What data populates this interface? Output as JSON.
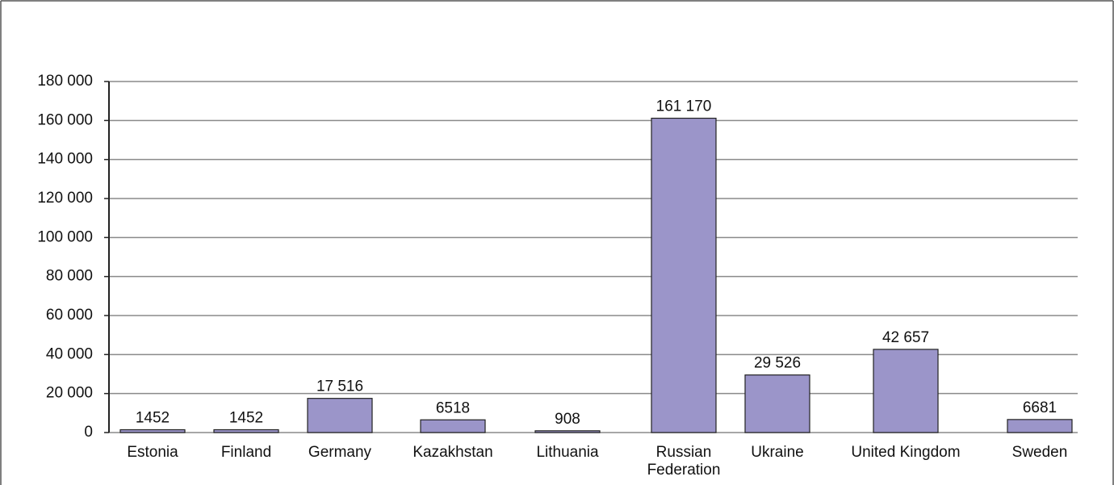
{
  "chart_data": {
    "type": "bar",
    "categories": [
      "Estonia",
      "Finland",
      "Germany",
      "Kazakhstan",
      "Lithuania",
      "Russian Federation",
      "Ukraine",
      "United Kingdom",
      "Sweden"
    ],
    "values": [
      1452,
      1452,
      17516,
      6518,
      908,
      161170,
      29526,
      42657,
      6681
    ],
    "value_labels": [
      "1452",
      "1452",
      "17 516",
      "6518",
      "908",
      "161 170",
      "29 526",
      "42 657",
      "6681"
    ],
    "color": "#9b95c9",
    "ylim": [
      0,
      180000
    ],
    "yticks": [
      0,
      {
        "value": 20000,
        "label": "20 000"
      },
      {
        "value": 40000,
        "label": "40 000"
      },
      {
        "value": 60000,
        "label": "60 000"
      },
      {
        "value": 80000,
        "label": "80 000"
      },
      {
        "value": 100000,
        "label": "100 000"
      },
      {
        "value": 120000,
        "label": "120 000"
      },
      {
        "value": 140000,
        "label": "140 000"
      },
      {
        "value": 160000,
        "label": "160 000"
      },
      {
        "value": 180000,
        "label": "180 000"
      }
    ],
    "grid": true
  }
}
